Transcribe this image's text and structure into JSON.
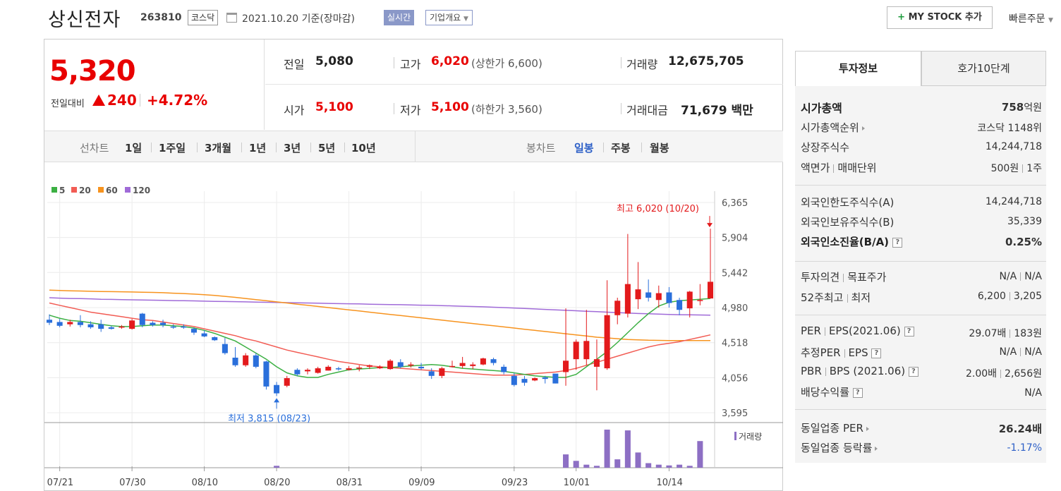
{
  "header": {
    "name": "상신전자",
    "code": "263810",
    "market": "코스닥",
    "date": "2021.10.20 기준(장마감)",
    "realtime": "실시간",
    "overview": "기업개요",
    "mystock": "MY STOCK 추가",
    "quick_order": "빠른주문"
  },
  "price": {
    "current": "5,320",
    "change_label": "전일대비",
    "change_amount": "240",
    "change_rate": "+4.72%"
  },
  "quotes": {
    "prev_close_label": "전일",
    "prev_close": "5,080",
    "high_label": "고가",
    "high": "6,020",
    "upper_limit": "(상한가 6,600)",
    "volume_label": "거래량",
    "volume": "12,675,705",
    "open_label": "시가",
    "open": "5,100",
    "low_label": "저가",
    "low": "5,100",
    "lower_limit": "(하한가 3,560)",
    "amount_label": "거래대금",
    "amount": "71,679",
    "amount_unit": "백만"
  },
  "chart_tabs": {
    "line_label": "선차트",
    "periods": [
      "1일",
      "1주일",
      "3개월",
      "1년",
      "3년",
      "5년",
      "10년"
    ],
    "candle_label": "봉차트",
    "candles": [
      "일봉",
      "주봉",
      "월봉"
    ]
  },
  "panel": {
    "tab_invest": "투자정보",
    "tab_hoga": "호가10단계",
    "market_cap_label": "시가총액",
    "market_cap_num": "758",
    "market_cap_unit": "억원",
    "cap_rank_label": "시가총액순위",
    "cap_rank": "코스닥 1148위",
    "shares_label": "상장주식수",
    "shares": "14,244,718",
    "face_label_a": "액면가",
    "face_label_b": "매매단위",
    "face_value": "500원",
    "trade_unit": "1주",
    "foreign_limit_label": "외국인한도주식수(A)",
    "foreign_limit": "14,244,718",
    "foreign_hold_label": "외국인보유주식수(B)",
    "foreign_hold": "35,339",
    "foreign_ratio_label": "외국인소진율(B/A)",
    "foreign_ratio": "0.25%",
    "opinion_label_a": "투자의견",
    "opinion_label_b": "목표주가",
    "opinion": "N/A",
    "target": "N/A",
    "w52_label_a": "52주최고",
    "w52_label_b": "최저",
    "w52_high": "6,200",
    "w52_low": "3,205",
    "per_label_a": "PER",
    "per_label_b": "EPS(2021.06)",
    "per": "29.07배",
    "eps": "183원",
    "est_per_label_a": "추정PER",
    "est_per_label_b": "EPS",
    "est_per": "N/A",
    "est_eps": "N/A",
    "pbr_label_a": "PBR",
    "pbr_label_b": "BPS (2021.06)",
    "pbr": "2.00배",
    "bps": "2,656원",
    "dividend_label": "배당수익률",
    "dividend": "N/A",
    "sector_per_label": "동일업종 PER",
    "sector_per": "26.24배",
    "sector_rate_label": "동일업종 등락률",
    "sector_rate": "-1.17%"
  },
  "chart_data": {
    "type": "candlestick",
    "legend": [
      {
        "label": "5",
        "color": "#3cb043"
      },
      {
        "label": "20",
        "color": "#f25c54"
      },
      {
        "label": "60",
        "color": "#f7931e"
      },
      {
        "label": "120",
        "color": "#a06bd8"
      }
    ],
    "y_ticks": [
      "6,365",
      "5,904",
      "5,442",
      "4,980",
      "4,518",
      "4,056",
      "3,595"
    ],
    "y_range": [
      3595,
      6365
    ],
    "x_ticks": [
      "07/21",
      "07/30",
      "08/10",
      "08/20",
      "08/31",
      "09/09",
      "09/23",
      "10/01",
      "10/14"
    ],
    "max_annotation": "최고 6,020 (10/20)",
    "min_annotation": "최저 3,815 (08/23)",
    "volume_label": "거래량",
    "candles": [
      {
        "o": 4820,
        "h": 4890,
        "l": 4750,
        "c": 4780
      },
      {
        "o": 4790,
        "h": 4830,
        "l": 4720,
        "c": 4740
      },
      {
        "o": 4760,
        "h": 4820,
        "l": 4730,
        "c": 4790
      },
      {
        "o": 4790,
        "h": 4880,
        "l": 4720,
        "c": 4750
      },
      {
        "o": 4760,
        "h": 4800,
        "l": 4700,
        "c": 4720
      },
      {
        "o": 4760,
        "h": 4820,
        "l": 4660,
        "c": 4700
      },
      {
        "o": 4720,
        "h": 4740,
        "l": 4690,
        "c": 4700
      },
      {
        "o": 4720,
        "h": 4750,
        "l": 4700,
        "c": 4730
      },
      {
        "o": 4700,
        "h": 4830,
        "l": 4690,
        "c": 4810
      },
      {
        "o": 4900,
        "h": 4910,
        "l": 4720,
        "c": 4750
      },
      {
        "o": 4780,
        "h": 4800,
        "l": 4730,
        "c": 4750
      },
      {
        "o": 4780,
        "h": 4820,
        "l": 4720,
        "c": 4750
      },
      {
        "o": 4730,
        "h": 4760,
        "l": 4700,
        "c": 4720
      },
      {
        "o": 4730,
        "h": 4760,
        "l": 4700,
        "c": 4720
      },
      {
        "o": 4700,
        "h": 4720,
        "l": 4620,
        "c": 4650
      },
      {
        "o": 4640,
        "h": 4680,
        "l": 4590,
        "c": 4600
      },
      {
        "o": 4590,
        "h": 4600,
        "l": 4540,
        "c": 4550
      },
      {
        "o": 4500,
        "h": 4580,
        "l": 4360,
        "c": 4380
      },
      {
        "o": 4320,
        "h": 4460,
        "l": 4200,
        "c": 4220
      },
      {
        "o": 4220,
        "h": 4380,
        "l": 4200,
        "c": 4350
      },
      {
        "o": 4350,
        "h": 4380,
        "l": 4180,
        "c": 4200
      },
      {
        "o": 4270,
        "h": 4280,
        "l": 3900,
        "c": 3940
      },
      {
        "o": 3960,
        "h": 4000,
        "l": 3815,
        "c": 3850
      },
      {
        "o": 3950,
        "h": 4080,
        "l": 3930,
        "c": 4050
      },
      {
        "o": 4160,
        "h": 4180,
        "l": 4080,
        "c": 4100
      },
      {
        "o": 4140,
        "h": 4180,
        "l": 4100,
        "c": 4160
      },
      {
        "o": 4120,
        "h": 4200,
        "l": 4110,
        "c": 4180
      },
      {
        "o": 4150,
        "h": 4220,
        "l": 4150,
        "c": 4200
      },
      {
        "o": 4180,
        "h": 4200,
        "l": 4150,
        "c": 4170
      },
      {
        "o": 4160,
        "h": 4210,
        "l": 4150,
        "c": 4180
      },
      {
        "o": 4180,
        "h": 4220,
        "l": 4140,
        "c": 4190
      },
      {
        "o": 4200,
        "h": 4230,
        "l": 4170,
        "c": 4220
      },
      {
        "o": 4180,
        "h": 4220,
        "l": 4170,
        "c": 4200
      },
      {
        "o": 4170,
        "h": 4300,
        "l": 4160,
        "c": 4280
      },
      {
        "o": 4260,
        "h": 4300,
        "l": 4180,
        "c": 4200
      },
      {
        "o": 4220,
        "h": 4260,
        "l": 4190,
        "c": 4230
      },
      {
        "o": 4200,
        "h": 4250,
        "l": 4160,
        "c": 4180
      },
      {
        "o": 4140,
        "h": 4180,
        "l": 4040,
        "c": 4080
      },
      {
        "o": 4080,
        "h": 4200,
        "l": 4050,
        "c": 4180
      },
      {
        "o": 4200,
        "h": 4280,
        "l": 4190,
        "c": 4210
      },
      {
        "o": 4210,
        "h": 4330,
        "l": 4180,
        "c": 4250
      },
      {
        "o": 4210,
        "h": 4260,
        "l": 4170,
        "c": 4230
      },
      {
        "o": 4230,
        "h": 4320,
        "l": 4220,
        "c": 4310
      },
      {
        "o": 4300,
        "h": 4320,
        "l": 4220,
        "c": 4250
      },
      {
        "o": 4200,
        "h": 4230,
        "l": 4100,
        "c": 4130
      },
      {
        "o": 4080,
        "h": 4120,
        "l": 3940,
        "c": 3960
      },
      {
        "o": 4040,
        "h": 4080,
        "l": 3950,
        "c": 3990
      },
      {
        "o": 4020,
        "h": 4060,
        "l": 4010,
        "c": 4050
      },
      {
        "o": 4060,
        "h": 4080,
        "l": 3980,
        "c": 4040
      },
      {
        "o": 4110,
        "h": 4100,
        "l": 3980,
        "c": 3980
      },
      {
        "o": 4130,
        "h": 4970,
        "l": 3950,
        "c": 4280
      },
      {
        "o": 4300,
        "h": 4560,
        "l": 4160,
        "c": 4530
      },
      {
        "o": 4300,
        "h": 4950,
        "l": 4220,
        "c": 4540
      },
      {
        "o": 4200,
        "h": 4560,
        "l": 3890,
        "c": 4300
      },
      {
        "o": 4180,
        "h": 5340,
        "l": 4160,
        "c": 4880
      },
      {
        "o": 4880,
        "h": 5110,
        "l": 4760,
        "c": 5070
      },
      {
        "o": 4900,
        "h": 5950,
        "l": 4850,
        "c": 5290
      },
      {
        "o": 5090,
        "h": 5580,
        "l": 4960,
        "c": 5220
      },
      {
        "o": 5180,
        "h": 5350,
        "l": 5060,
        "c": 5110
      },
      {
        "o": 5080,
        "h": 5270,
        "l": 4980,
        "c": 5170
      },
      {
        "o": 5180,
        "h": 5250,
        "l": 4980,
        "c": 5040
      },
      {
        "o": 5080,
        "h": 5110,
        "l": 4880,
        "c": 4950
      },
      {
        "o": 4970,
        "h": 5200,
        "l": 4850,
        "c": 5190
      },
      {
        "o": 5080,
        "h": 5290,
        "l": 5010,
        "c": 5080
      },
      {
        "o": 5100,
        "h": 6020,
        "l": 5100,
        "c": 5320
      }
    ],
    "ma5": [
      4880,
      4840,
      4810,
      4800,
      4780,
      4760,
      4740,
      4730,
      4730,
      4740,
      4750,
      4750,
      4740,
      4730,
      4710,
      4680,
      4640,
      4590,
      4540,
      4460,
      4380,
      4300,
      4200,
      4120,
      4080,
      4060,
      4060,
      4100,
      4130,
      4160,
      4170,
      4180,
      4190,
      4190,
      4200,
      4210,
      4220,
      4230,
      4220,
      4200,
      4180,
      4170,
      4160,
      4150,
      4140,
      4120,
      4100,
      4080,
      4070,
      4060,
      4060,
      4100,
      4200,
      4300,
      4400,
      4520,
      4650,
      4780,
      4900,
      5000,
      5050,
      5070,
      5080,
      5090,
      5100
    ],
    "ma20": [
      5040,
      5010,
      4980,
      4950,
      4920,
      4900,
      4880,
      4860,
      4840,
      4820,
      4810,
      4790,
      4770,
      4750,
      4730,
      4700,
      4670,
      4640,
      4610,
      4570,
      4540,
      4500,
      4460,
      4420,
      4390,
      4360,
      4330,
      4300,
      4270,
      4250,
      4230,
      4210,
      4200,
      4190,
      4180,
      4170,
      4160,
      4150,
      4140,
      4130,
      4120,
      4110,
      4100,
      4090,
      4090,
      4090,
      4100,
      4110,
      4120,
      4130,
      4150,
      4180,
      4220,
      4260,
      4300,
      4340,
      4380,
      4420,
      4460,
      4490,
      4510,
      4530,
      4560,
      4590,
      4620
    ],
    "ma60": [
      5210,
      5205,
      5200,
      5198,
      5195,
      5192,
      5190,
      5188,
      5185,
      5182,
      5180,
      5176,
      5170,
      5165,
      5158,
      5150,
      5140,
      5128,
      5115,
      5100,
      5085,
      5070,
      5055,
      5040,
      5025,
      5010,
      4995,
      4980,
      4965,
      4950,
      4935,
      4920,
      4905,
      4890,
      4875,
      4860,
      4845,
      4830,
      4815,
      4800,
      4785,
      4770,
      4755,
      4740,
      4725,
      4710,
      4695,
      4680,
      4665,
      4650,
      4635,
      4620,
      4605,
      4590,
      4580,
      4570,
      4560,
      4555,
      4550,
      4548,
      4546,
      4545,
      4545,
      4545,
      4545
    ],
    "ma120": [
      5110,
      5105,
      5100,
      5098,
      5095,
      5090,
      5088,
      5085,
      5082,
      5080,
      5078,
      5075,
      5072,
      5070,
      5068,
      5065,
      5062,
      5060,
      5058,
      5055,
      5052,
      5050,
      5048,
      5045,
      5042,
      5040,
      5038,
      5035,
      5032,
      5030,
      5028,
      5025,
      5022,
      5020,
      5018,
      5015,
      5012,
      5010,
      5006,
      5002,
      4998,
      4994,
      4990,
      4985,
      4980,
      4974,
      4968,
      4962,
      4956,
      4950,
      4944,
      4938,
      4932,
      4926,
      4920,
      4914,
      4908,
      4902,
      4898,
      4894,
      4890,
      4886,
      4884,
      4882,
      4880
    ],
    "volume": [
      0,
      0,
      0,
      0,
      0,
      0,
      0,
      0,
      0,
      0,
      0,
      0,
      0,
      0,
      0,
      0,
      0,
      0,
      0,
      0,
      0,
      0,
      0.05,
      0,
      0,
      0,
      0,
      0,
      0,
      0,
      0,
      0,
      0,
      0,
      0,
      0,
      0,
      0,
      0,
      0,
      0,
      0,
      0,
      0,
      0,
      0,
      0,
      0,
      0,
      0,
      0.35,
      0.18,
      0.08,
      0.05,
      1.0,
      0.22,
      0.98,
      0.4,
      0.12,
      0.08,
      0.06,
      0.08,
      0.05,
      0.7,
      0.0
    ]
  }
}
